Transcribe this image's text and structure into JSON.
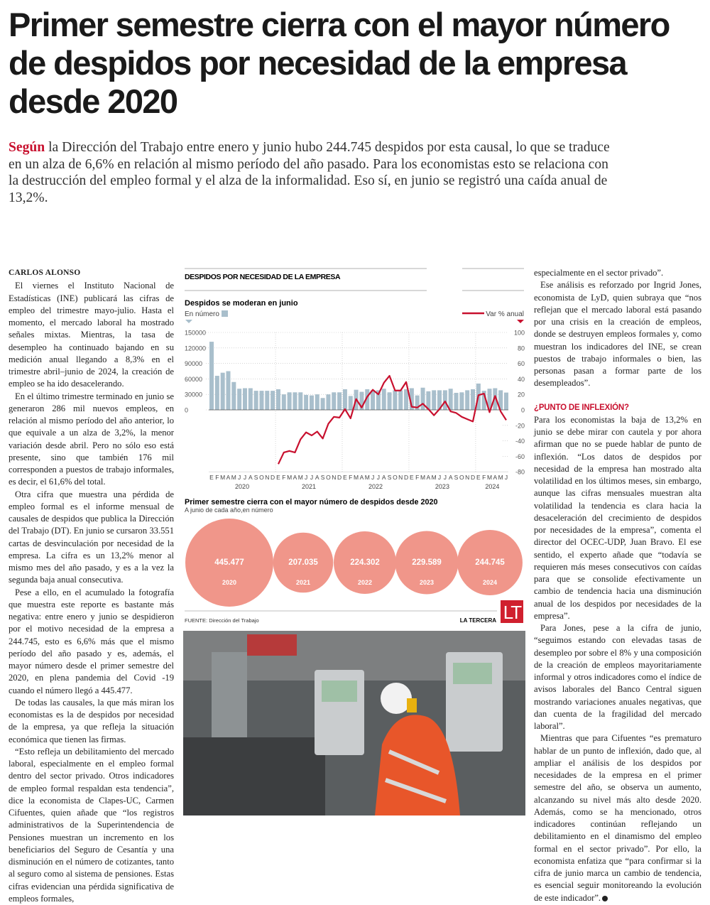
{
  "headline": "Primer semestre cierra con el mayor número de despidos por necesidad de la empresa desde 2020",
  "deck": {
    "lead": "Según",
    "text": " la Dirección del Trabajo entre enero y junio hubo 244.745 despidos por esta causal, lo que se traduce en un alza de 6,6% en relación al mismo período del año pasado. Para los economistas esto se relaciona con la destrucción del empleo formal y el alza de la informalidad. Eso sí, en junio se registró una caída anual de 13,2%."
  },
  "byline": "CARLOS ALONSO",
  "left_paragraphs": [
    "El viernes el Instituto Nacional de Estadísticas (INE) publicará las cifras de empleo del trimestre mayo-julio. Hasta el momento, el mercado laboral ha mostrado señales mixtas. Mientras, la tasa de desempleo ha continuado bajando en su medición anual llegando a 8,3% en el trimestre abril–junio de 2024, la creación de empleo se ha ido desacelerando.",
    "En el último trimestre terminado en junio se generaron 286 mil nuevos empleos, en relación al mismo período del año anterior, lo que equivale a un alza de 3,2%, la menor variación desde abril. Pero no sólo eso está presente, sino que también 176 mil corresponden a puestos de trabajo informales, es decir, el 61,6% del total.",
    "Otra cifra que muestra una pérdida de empleo formal es el informe mensual de causales de despidos que publica la Dirección del Trabajo (DT). En junio se cursaron 33.551 cartas de desvinculación por necesidad de la empresa. La cifra es un 13,2% menor al mismo mes del año pasado, y es a la vez la segunda baja anual consecutiva.",
    "Pese a ello, en el acumulado la fotografía que muestra este reporte es bastante más negativa: entre enero y junio se despidieron por el motivo necesidad de la empresa a 244.745, esto es 6,6% más que el mismo período del año pasado y es, además, el mayor número desde el primer semestre del 2020, en plena pandemia del Covid -19 cuando el número llegó a 445.477.",
    "De todas las causales, la que más miran los economistas es la de despidos por necesidad de la empresa, ya que refleja la situación económica que tienen las firmas.",
    "“Esto refleja un debilitamiento del mercado laboral, especialmente en el empleo formal dentro del sector privado. Otros indicadores de empleo formal respaldan esta tendencia”, dice la economista de Clapes-UC, Carmen Cifuentes, quien añade que “los registros administrativos de la Superintendencia de Pensiones muestran un incremento en los beneficiarios del Seguro de Cesantía y una disminución en el número de cotizantes, tanto al seguro como al sistema de pensiones. Estas cifras evidencian una pérdida significativa de empleos formales,"
  ],
  "right_paragraphs_a": [
    "especialmente en el sector privado”.",
    "Ese análisis es reforzado por Ingrid Jones, economista de LyD, quien subraya que “nos reflejan que el mercado laboral está pasando por una crisis en la creación de empleos, donde se destruyen empleos formales y, como muestran los indicadores del INE, se crean puestos de trabajo informales o bien, las personas pasan a formar parte de los desempleados”."
  ],
  "subhead": "¿PUNTO DE INFLEXIÓN?",
  "right_paragraphs_b": [
    "Para los economistas la baja de 13,2% en junio se debe mirar con cautela y por ahora afirman que no se puede hablar de punto de inflexión. “Los datos de despidos por necesidad de la empresa han mostrado alta volatilidad en los últimos meses, sin embargo, aunque las cifras mensuales muestran alta volatilidad la tendencia es clara hacia la desaceleración del crecimiento de despidos por necesidades de la empresa”, comenta el director del OCEC-UDP, Juan Bravo. El ese sentido, el experto añade que “todavía se requieren más meses consecutivos con caídas para que se consolide efectivamente un cambio de tendencia hacia una disminución anual de los despidos por necesidades de la empresa”.",
    "Para Jones, pese a la cifra de junio, “seguimos estando con elevadas tasas de desempleo por sobre el 8% y una composición de la creación de empleos mayoritariamente informal y otros indicadores como el índice de avisos laborales del Banco Central siguen mostrando variaciones anuales negativas, que dan cuenta de la fragilidad del mercado laboral”.",
    "Mientras que para Cifuentes “es prematuro hablar de un punto de inflexión, dado que, al ampliar el análisis de los despidos por necesidades de la empresa en el primer semestre del año, se observa un aumento, alcanzando su nivel más alto desde 2020. Además, como se ha mencionado, otros indicadores continúan reflejando un debilitamiento en el dinamismo del empleo formal en el sector privado”. Por ello, la economista enfatiza que “para confirmar si la cifra de junio marca un cambio de tendencia, es esencial seguir monitoreando la evolución de este indicador”."
  ],
  "graphic": {
    "section_title": "DESPIDOS POR NECESIDAD DE LA EMPRESA",
    "source_label": "FUENTE:",
    "source": "Dirección del Trabajo",
    "brand": "LA TERCERA",
    "logo_text": "LT",
    "colors": {
      "bars": "#a9bfcc",
      "line": "#c8102e",
      "bubbles": "#f0968a",
      "logo": "#d0202e"
    }
  },
  "chart_data": [
    {
      "type": "bar+line",
      "title": "Despidos se moderan en junio",
      "left_axis_label": "En número",
      "right_axis_label": "Var % anual",
      "left_ylim": [
        0,
        150000
      ],
      "left_ticks": [
        "150000",
        "120000",
        "90000",
        "60000",
        "30000",
        "0"
      ],
      "right_ylim": [
        -80,
        100
      ],
      "right_ticks": [
        "100",
        "80",
        "60",
        "40",
        "20",
        "0",
        "-20",
        "-40",
        "-60",
        "-80"
      ],
      "month_labels": [
        "E",
        "F",
        "M",
        "A",
        "M",
        "J",
        "J",
        "A",
        "S",
        "O",
        "N",
        "D"
      ],
      "years": [
        "2020",
        "2021",
        "2022",
        "2023",
        "2024"
      ],
      "grid": "vertical dashed year separators",
      "bars": {
        "name": "En número",
        "start": "2020-01",
        "values": [
          132000,
          66000,
          72000,
          75000,
          54000,
          41000,
          42000,
          42000,
          37000,
          37000,
          37000,
          37000,
          40000,
          30000,
          34000,
          34000,
          34000,
          29000,
          28000,
          30000,
          23000,
          30000,
          34000,
          34000,
          40000,
          27000,
          39000,
          35000,
          40000,
          38000,
          38000,
          41000,
          34000,
          38000,
          38000,
          40000,
          42000,
          28000,
          43000,
          36000,
          38000,
          38000,
          38000,
          41000,
          33000,
          34000,
          38000,
          40000,
          51000,
          37000,
          41000,
          42000,
          38000,
          33551
        ]
      },
      "line": {
        "name": "Var % anual",
        "start": "2021-01",
        "values": [
          -70,
          -55,
          -53,
          -55,
          -38,
          -29,
          -33,
          -28,
          -37,
          -18,
          -9,
          -10,
          1,
          -11,
          14,
          3,
          17,
          26,
          20,
          35,
          44,
          25,
          25,
          36,
          4,
          3,
          8,
          1,
          -7,
          1,
          11,
          -2,
          -4,
          -9,
          -12,
          -15,
          19,
          21,
          -3,
          18,
          -2,
          -13.2
        ]
      }
    },
    {
      "type": "bubble",
      "title": "Primer semestre cierra con el mayor número de despidos desde 2020",
      "subtitle": "A junio de cada año,en número",
      "categories": [
        "2020",
        "2021",
        "2022",
        "2023",
        "2024"
      ],
      "labels": [
        "445.477",
        "207.035",
        "224.302",
        "229.589",
        "244.745"
      ],
      "values": [
        445477,
        207035,
        224302,
        229589,
        244745
      ]
    }
  ]
}
